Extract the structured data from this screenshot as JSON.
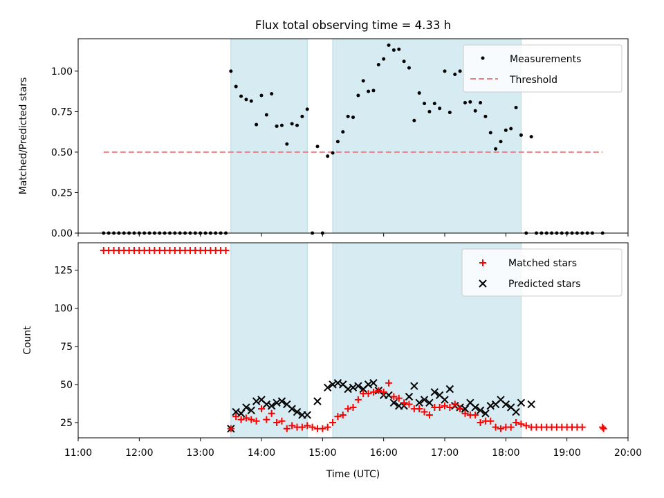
{
  "chart_data": [
    {
      "type": "scatter",
      "title": "Flux total observing time = 4.33 h",
      "ylabel": "Matched/Predicted stars",
      "xlim": [
        "11:00",
        "20:00"
      ],
      "ylim": [
        0,
        1.2
      ],
      "yticks": [
        "0.00",
        "0.25",
        "0.50",
        "0.75",
        "1.00"
      ],
      "shaded_intervals": [
        [
          "13:30",
          "14:45"
        ],
        [
          "15:10",
          "18:15"
        ]
      ],
      "threshold": {
        "value": 0.5,
        "x_start": "11:25",
        "x_end": "19:35",
        "color": "#f08080"
      },
      "legend": {
        "position": "top-right",
        "items": [
          "Measurements",
          "Threshold"
        ]
      },
      "series": [
        {
          "name": "Measurements",
          "color": "#000000",
          "points": [
            [
              "11:25",
              0
            ],
            [
              "11:30",
              0
            ],
            [
              "11:35",
              0
            ],
            [
              "11:40",
              0
            ],
            [
              "11:45",
              0
            ],
            [
              "11:50",
              0
            ],
            [
              "11:55",
              0
            ],
            [
              "12:00",
              0
            ],
            [
              "12:05",
              0
            ],
            [
              "12:10",
              0
            ],
            [
              "12:15",
              0
            ],
            [
              "12:20",
              0
            ],
            [
              "12:25",
              0
            ],
            [
              "12:30",
              0
            ],
            [
              "12:35",
              0
            ],
            [
              "12:40",
              0
            ],
            [
              "12:45",
              0
            ],
            [
              "12:50",
              0
            ],
            [
              "12:55",
              0
            ],
            [
              "13:00",
              0
            ],
            [
              "13:05",
              0
            ],
            [
              "13:10",
              0
            ],
            [
              "13:15",
              0
            ],
            [
              "13:20",
              0
            ],
            [
              "13:25",
              0
            ],
            [
              "13:30",
              1.0
            ],
            [
              "13:35",
              0.905
            ],
            [
              "13:40",
              0.845
            ],
            [
              "13:45",
              0.825
            ],
            [
              "13:50",
              0.815
            ],
            [
              "13:55",
              0.67
            ],
            [
              "14:00",
              0.85
            ],
            [
              "14:05",
              0.73
            ],
            [
              "14:10",
              0.86
            ],
            [
              "14:15",
              0.66
            ],
            [
              "14:20",
              0.665
            ],
            [
              "14:25",
              0.55
            ],
            [
              "14:30",
              0.675
            ],
            [
              "14:35",
              0.665
            ],
            [
              "14:40",
              0.72
            ],
            [
              "14:45",
              0.765
            ],
            [
              "14:50",
              0
            ],
            [
              "14:55",
              0.535
            ],
            [
              "15:00",
              0
            ],
            [
              "15:05",
              0.475
            ],
            [
              "15:10",
              0.495
            ],
            [
              "15:15",
              0.565
            ],
            [
              "15:20",
              0.625
            ],
            [
              "15:25",
              0.72
            ],
            [
              "15:30",
              0.715
            ],
            [
              "15:35",
              0.85
            ],
            [
              "15:40",
              0.94
            ],
            [
              "15:45",
              0.875
            ],
            [
              "15:50",
              0.88
            ],
            [
              "15:55",
              1.04
            ],
            [
              "16:00",
              1.075
            ],
            [
              "16:05",
              1.16
            ],
            [
              "16:10",
              1.13
            ],
            [
              "16:15",
              1.135
            ],
            [
              "16:20",
              1.06
            ],
            [
              "16:25",
              1.02
            ],
            [
              "16:30",
              0.695
            ],
            [
              "16:35",
              0.865
            ],
            [
              "16:40",
              0.8
            ],
            [
              "16:45",
              0.75
            ],
            [
              "16:50",
              0.8
            ],
            [
              "16:55",
              0.77
            ],
            [
              "17:00",
              1.0
            ],
            [
              "17:05",
              0.745
            ],
            [
              "17:10",
              0.98
            ],
            [
              "17:15",
              1.0
            ],
            [
              "17:20",
              0.805
            ],
            [
              "17:25",
              0.81
            ],
            [
              "17:30",
              0.755
            ],
            [
              "17:35",
              0.805
            ],
            [
              "17:40",
              0.72
            ],
            [
              "17:45",
              0.62
            ],
            [
              "17:50",
              0.52
            ],
            [
              "17:55",
              0.565
            ],
            [
              "18:00",
              0.635
            ],
            [
              "18:05",
              0.645
            ],
            [
              "18:10",
              0.775
            ],
            [
              "18:15",
              0.605
            ],
            [
              "18:20",
              0
            ],
            [
              "18:25",
              0.595
            ],
            [
              "18:30",
              0
            ],
            [
              "18:35",
              0
            ],
            [
              "18:40",
              0
            ],
            [
              "18:45",
              0
            ],
            [
              "18:50",
              0
            ],
            [
              "18:55",
              0
            ],
            [
              "19:00",
              0
            ],
            [
              "19:05",
              0
            ],
            [
              "19:10",
              0
            ],
            [
              "19:15",
              0
            ],
            [
              "19:20",
              0
            ],
            [
              "19:25",
              0
            ],
            [
              "19:35",
              0
            ]
          ]
        }
      ]
    },
    {
      "type": "scatter",
      "xlabel": "Time (UTC)",
      "ylabel": "Count",
      "xlim": [
        "11:00",
        "20:00"
      ],
      "ylim": [
        15,
        143
      ],
      "xticks": [
        "11:00",
        "12:00",
        "13:00",
        "14:00",
        "15:00",
        "16:00",
        "17:00",
        "18:00",
        "19:00",
        "20:00"
      ],
      "yticks": [
        "25",
        "50",
        "75",
        "100",
        "125"
      ],
      "shaded_intervals": [
        [
          "13:30",
          "14:45"
        ],
        [
          "15:10",
          "18:15"
        ]
      ],
      "legend": {
        "position": "top-right",
        "items": [
          "Matched stars",
          "Predicted stars"
        ]
      },
      "series": [
        {
          "name": "Matched stars",
          "marker": "+",
          "color": "#ff0000",
          "points": [
            [
              "11:25",
              138
            ],
            [
              "11:30",
              138
            ],
            [
              "11:35",
              138
            ],
            [
              "11:40",
              138
            ],
            [
              "11:45",
              138
            ],
            [
              "11:50",
              138
            ],
            [
              "11:55",
              138
            ],
            [
              "12:00",
              138
            ],
            [
              "12:05",
              138
            ],
            [
              "12:10",
              138
            ],
            [
              "12:15",
              138
            ],
            [
              "12:20",
              138
            ],
            [
              "12:25",
              138
            ],
            [
              "12:30",
              138
            ],
            [
              "12:35",
              138
            ],
            [
              "12:40",
              138
            ],
            [
              "12:45",
              138
            ],
            [
              "12:50",
              138
            ],
            [
              "12:55",
              138
            ],
            [
              "13:00",
              138
            ],
            [
              "13:05",
              138
            ],
            [
              "13:10",
              138
            ],
            [
              "13:15",
              138
            ],
            [
              "13:20",
              138
            ],
            [
              "13:25",
              138
            ],
            [
              "13:30",
              21
            ],
            [
              "13:35",
              29
            ],
            [
              "13:40",
              27
            ],
            [
              "13:45",
              28
            ],
            [
              "13:50",
              27
            ],
            [
              "13:55",
              26
            ],
            [
              "14:00",
              34
            ],
            [
              "14:05",
              27
            ],
            [
              "14:10",
              31
            ],
            [
              "14:15",
              25
            ],
            [
              "14:20",
              26
            ],
            [
              "14:25",
              21
            ],
            [
              "14:30",
              23
            ],
            [
              "14:35",
              22
            ],
            [
              "14:40",
              22
            ],
            [
              "14:45",
              23
            ],
            [
              "14:50",
              22
            ],
            [
              "14:55",
              21
            ],
            [
              "15:00",
              21
            ],
            [
              "15:05",
              22
            ],
            [
              "15:10",
              25
            ],
            [
              "15:15",
              29
            ],
            [
              "15:20",
              30
            ],
            [
              "15:25",
              34
            ],
            [
              "15:30",
              35
            ],
            [
              "15:35",
              40
            ],
            [
              "15:40",
              44
            ],
            [
              "15:45",
              44
            ],
            [
              "15:50",
              45
            ],
            [
              "15:55",
              46
            ],
            [
              "16:00",
              45
            ],
            [
              "16:05",
              51
            ],
            [
              "16:10",
              42
            ],
            [
              "16:15",
              41
            ],
            [
              "16:20",
              38
            ],
            [
              "16:25",
              37
            ],
            [
              "16:30",
              34
            ],
            [
              "16:35",
              34
            ],
            [
              "16:40",
              32
            ],
            [
              "16:45",
              30
            ],
            [
              "16:50",
              35
            ],
            [
              "16:55",
              35
            ],
            [
              "17:00",
              36
            ],
            [
              "17:05",
              35
            ],
            [
              "17:10",
              37
            ],
            [
              "17:15",
              34
            ],
            [
              "17:20",
              31
            ],
            [
              "17:25",
              30
            ],
            [
              "17:30",
              30
            ],
            [
              "17:35",
              25
            ],
            [
              "17:40",
              26
            ],
            [
              "17:45",
              26
            ],
            [
              "17:50",
              22
            ],
            [
              "17:55",
              21
            ],
            [
              "18:00",
              22
            ],
            [
              "18:05",
              22
            ],
            [
              "18:10",
              25
            ],
            [
              "18:15",
              24
            ],
            [
              "18:20",
              23
            ],
            [
              "18:25",
              22
            ],
            [
              "18:30",
              22
            ],
            [
              "18:35",
              22
            ],
            [
              "18:40",
              22
            ],
            [
              "18:45",
              22
            ],
            [
              "18:50",
              22
            ],
            [
              "18:55",
              22
            ],
            [
              "19:00",
              22
            ],
            [
              "19:05",
              22
            ],
            [
              "19:10",
              22
            ],
            [
              "19:15",
              22
            ],
            [
              "19:35",
              22
            ],
            [
              "19:36",
              21
            ]
          ]
        },
        {
          "name": "Predicted stars",
          "marker": "x",
          "color": "#000000",
          "points": [
            [
              "13:30",
              21
            ],
            [
              "13:35",
              32
            ],
            [
              "13:40",
              31
            ],
            [
              "13:45",
              35
            ],
            [
              "13:50",
              33
            ],
            [
              "13:55",
              39
            ],
            [
              "14:00",
              40
            ],
            [
              "14:05",
              37
            ],
            [
              "14:10",
              36
            ],
            [
              "14:15",
              38
            ],
            [
              "14:20",
              39
            ],
            [
              "14:25",
              37
            ],
            [
              "14:30",
              34
            ],
            [
              "14:35",
              32
            ],
            [
              "14:40",
              30
            ],
            [
              "14:45",
              30
            ],
            [
              "14:55",
              39
            ],
            [
              "15:05",
              48
            ],
            [
              "15:10",
              50
            ],
            [
              "15:15",
              51
            ],
            [
              "15:20",
              50
            ],
            [
              "15:25",
              47
            ],
            [
              "15:30",
              48
            ],
            [
              "15:35",
              49
            ],
            [
              "15:40",
              47
            ],
            [
              "15:45",
              50
            ],
            [
              "15:50",
              51
            ],
            [
              "15:55",
              46
            ],
            [
              "16:00",
              43
            ],
            [
              "16:05",
              43
            ],
            [
              "16:10",
              38
            ],
            [
              "16:15",
              36
            ],
            [
              "16:20",
              36
            ],
            [
              "16:25",
              42
            ],
            [
              "16:30",
              49
            ],
            [
              "16:35",
              38
            ],
            [
              "16:40",
              40
            ],
            [
              "16:45",
              38
            ],
            [
              "16:50",
              45
            ],
            [
              "16:55",
              43
            ],
            [
              "17:00",
              40
            ],
            [
              "17:05",
              47
            ],
            [
              "17:10",
              36
            ],
            [
              "17:15",
              35
            ],
            [
              "17:20",
              34
            ],
            [
              "17:25",
              38
            ],
            [
              "17:30",
              35
            ],
            [
              "17:35",
              33
            ],
            [
              "17:40",
              31
            ],
            [
              "17:45",
              36
            ],
            [
              "17:50",
              37
            ],
            [
              "17:55",
              40
            ],
            [
              "18:00",
              37
            ],
            [
              "18:05",
              35
            ],
            [
              "18:10",
              32
            ],
            [
              "18:15",
              38
            ],
            [
              "18:25",
              37
            ]
          ]
        }
      ]
    }
  ]
}
